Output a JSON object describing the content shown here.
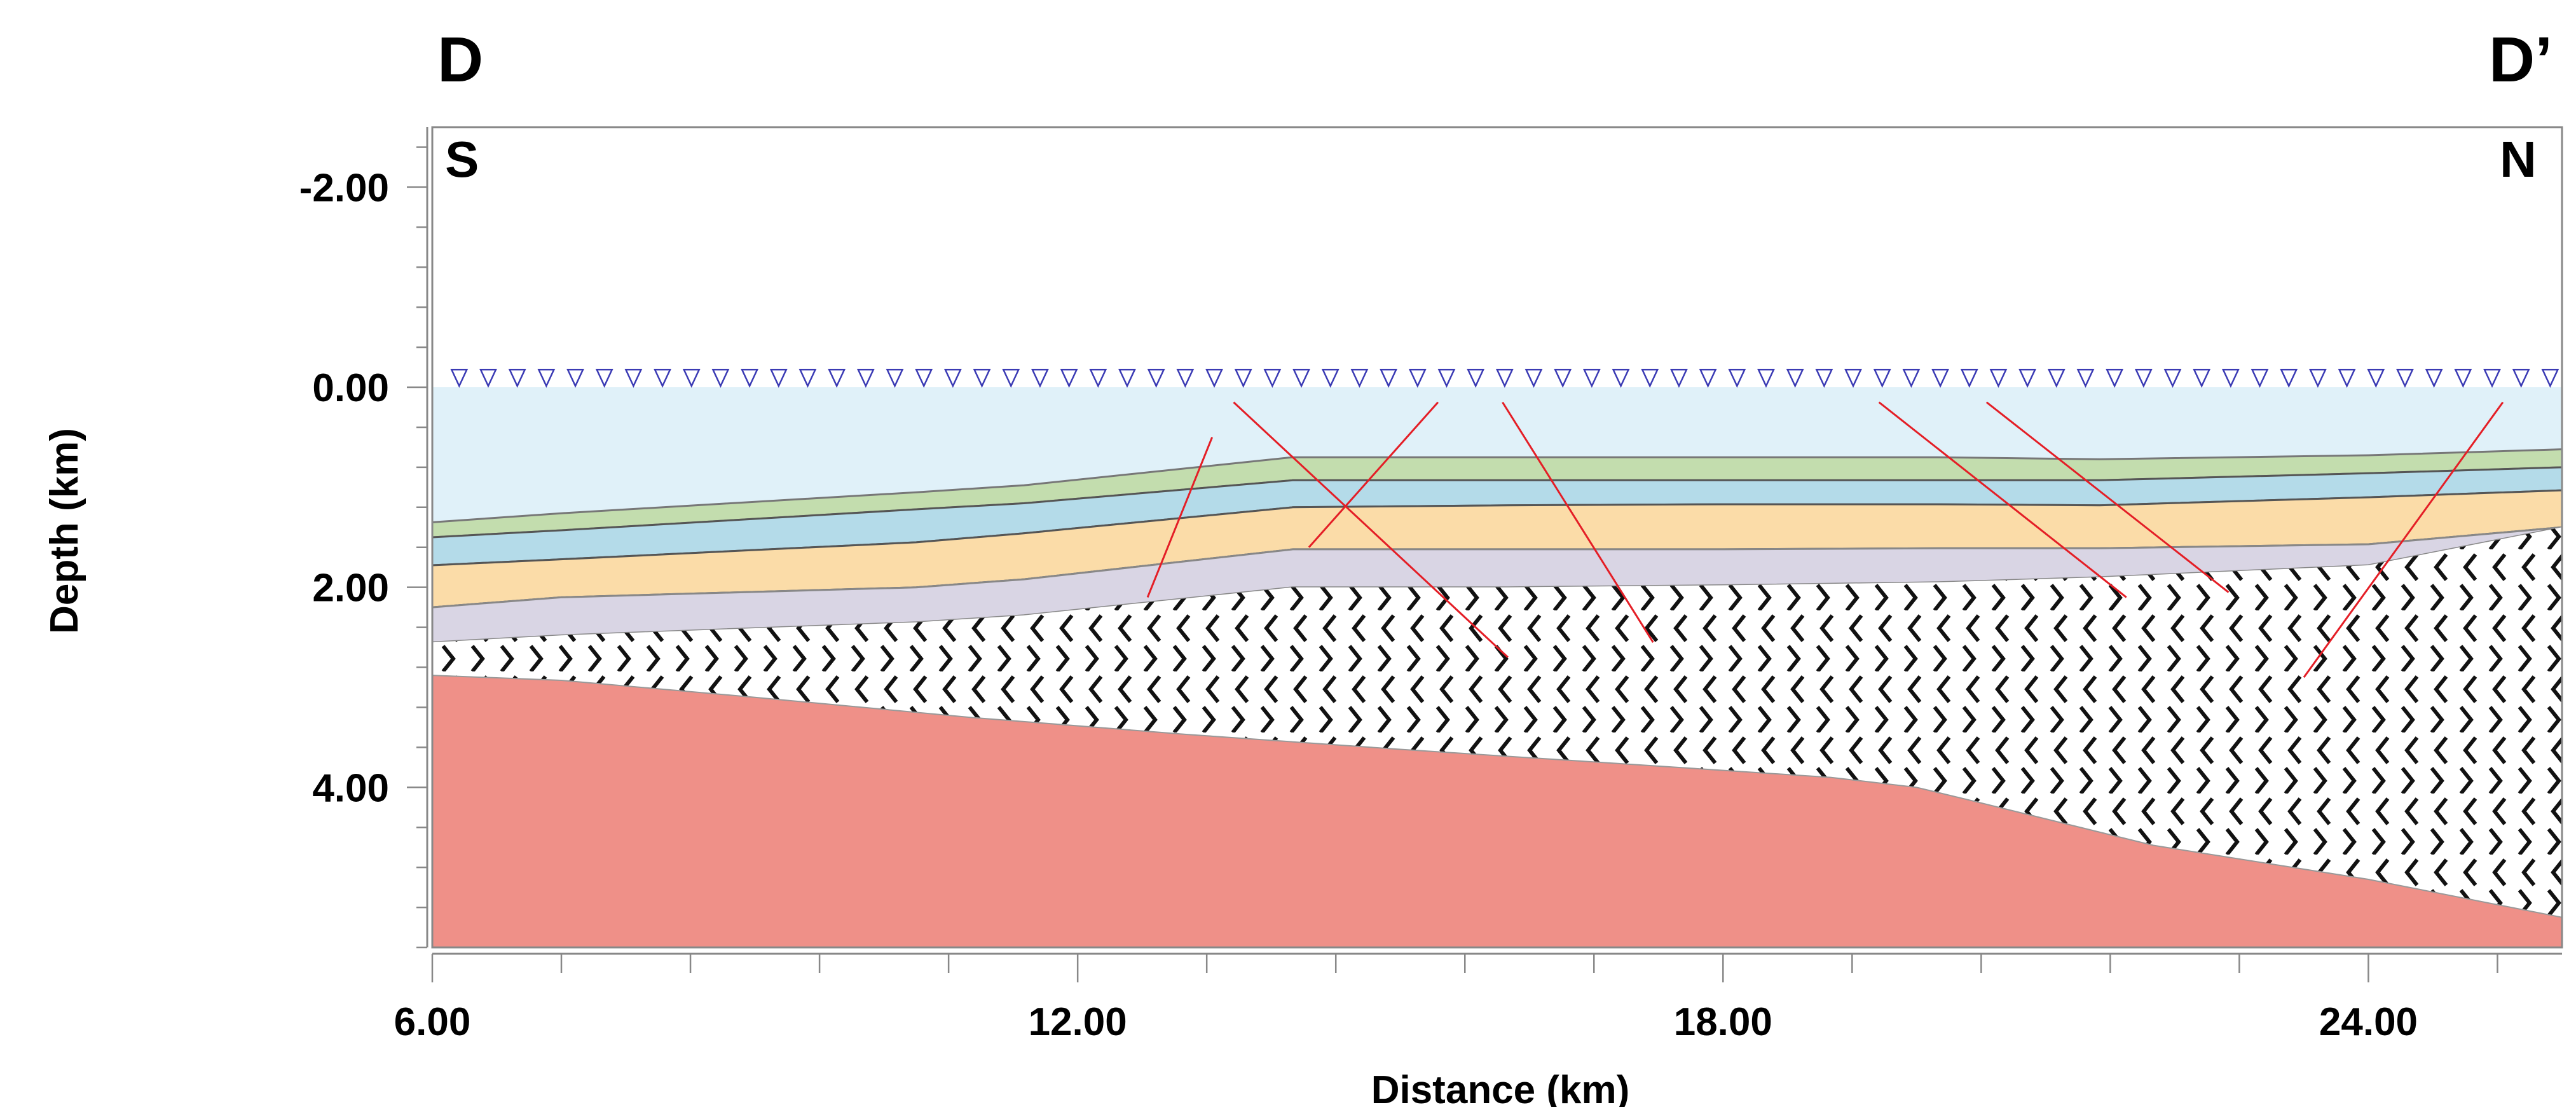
{
  "section": {
    "start_label": "D",
    "end_label": "D’",
    "left_direction": "S",
    "right_direction": "N"
  },
  "axes": {
    "x_title": "Distance (km)",
    "y_title": "Depth (km)",
    "x_range": [
      6.0,
      25.8
    ],
    "y_range": [
      -2.6,
      5.6
    ],
    "x_ticks": [
      {
        "v": 6,
        "label": "6.00"
      },
      {
        "v": 12,
        "label": "12.00"
      },
      {
        "v": 18,
        "label": "18.00"
      },
      {
        "v": 24,
        "label": "24.00"
      }
    ],
    "y_ticks": [
      {
        "v": -2,
        "label": "-2.00"
      },
      {
        "v": 0,
        "label": "0.00"
      },
      {
        "v": 2,
        "label": "2.00"
      },
      {
        "v": 4,
        "label": "4.00"
      }
    ]
  },
  "colors": {
    "water": "#e0f1f9",
    "layer_green": "#c3ddae",
    "layer_blue": "#b4dbe9",
    "layer_orange": "#fbdca8",
    "layer_lavender": "#d9d5e4",
    "basement_red": "#ef9088",
    "faults": "#e41e26",
    "stations": "#3a3ab4"
  },
  "geology": {
    "x": [
      6.0,
      7.2,
      10.5,
      11.5,
      14.0,
      16.0,
      18.0,
      20.0,
      21.5,
      24.0,
      25.8
    ],
    "surface": [
      0,
      0,
      0,
      0,
      0,
      0,
      0,
      0,
      0,
      0,
      0
    ],
    "h1": [
      1.35,
      1.26,
      1.05,
      0.98,
      0.7,
      0.7,
      0.7,
      0.7,
      0.72,
      0.68,
      0.62
    ],
    "h2": [
      1.5,
      1.43,
      1.22,
      1.16,
      0.93,
      0.93,
      0.93,
      0.93,
      0.93,
      0.86,
      0.8
    ],
    "h3": [
      1.78,
      1.72,
      1.55,
      1.46,
      1.2,
      1.18,
      1.17,
      1.17,
      1.18,
      1.1,
      1.03
    ],
    "h4": [
      2.2,
      2.1,
      2.0,
      1.92,
      1.62,
      1.62,
      1.62,
      1.61,
      1.61,
      1.57,
      1.4
    ],
    "h5": [
      2.55,
      2.48,
      2.35,
      2.28,
      2.0,
      2.0,
      1.98,
      1.95,
      1.9,
      1.78,
      1.4
    ],
    "basement_x": [
      6.0,
      7.2,
      9.0,
      11.0,
      13.0,
      15.0,
      17.0,
      19.0,
      19.8,
      20.3,
      22.0,
      24.0,
      25.8
    ],
    "basement_top": [
      2.88,
      2.93,
      3.1,
      3.3,
      3.47,
      3.62,
      3.76,
      3.9,
      4.0,
      4.13,
      4.58,
      4.92,
      5.3
    ]
  },
  "faults": [
    {
      "x1": 13.45,
      "y1": 0.15,
      "x2": 16.0,
      "y2": 2.7
    },
    {
      "x1": 13.25,
      "y1": 0.5,
      "x2": 12.65,
      "y2": 2.1
    },
    {
      "x1": 15.35,
      "y1": 0.15,
      "x2": 14.15,
      "y2": 1.6
    },
    {
      "x1": 15.95,
      "y1": 0.15,
      "x2": 17.35,
      "y2": 2.55
    },
    {
      "x1": 19.45,
      "y1": 0.15,
      "x2": 21.75,
      "y2": 2.1
    },
    {
      "x1": 20.45,
      "y1": 0.15,
      "x2": 22.7,
      "y2": 2.05
    },
    {
      "x1": 25.25,
      "y1": 0.15,
      "x2": 23.4,
      "y2": 2.9
    }
  ],
  "stations": {
    "x_start": 6.25,
    "x_end": 25.7,
    "spacing": 0.27,
    "depth": -0.1
  }
}
